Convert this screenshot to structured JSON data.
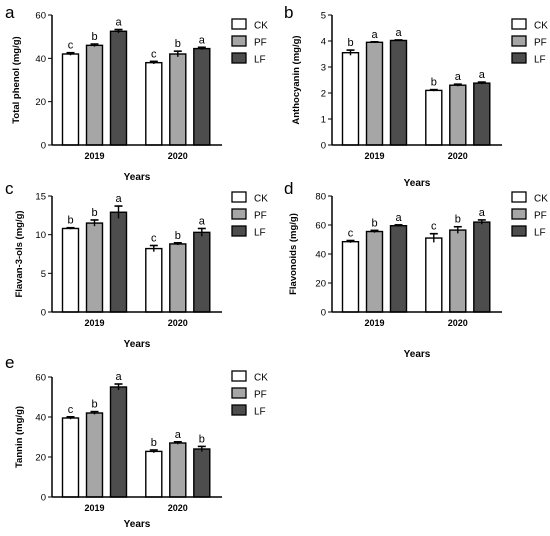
{
  "chart_data": [
    {
      "type": "bar",
      "panel_label": "a",
      "categories": [
        "2019",
        "2020"
      ],
      "xlabel": "Years",
      "ylabel": "Total phenol (mg/g)",
      "ylim": [
        0,
        60
      ],
      "yticks": [
        "0",
        "20",
        "40",
        "60"
      ],
      "series": [
        {
          "name": "CK",
          "values": [
            42.0,
            38.0
          ],
          "errors": [
            0.6,
            0.6
          ],
          "letters": [
            "c",
            "c"
          ]
        },
        {
          "name": "PF",
          "values": [
            46.0,
            42.0
          ],
          "errors": [
            0.6,
            1.3
          ],
          "letters": [
            "b",
            "b"
          ]
        },
        {
          "name": "LF",
          "values": [
            52.5,
            44.5
          ],
          "errors": [
            0.8,
            0.6
          ],
          "letters": [
            "a",
            "a"
          ]
        }
      ],
      "legend": "right"
    },
    {
      "type": "bar",
      "panel_label": "b",
      "categories": [
        "2019",
        "2020"
      ],
      "xlabel": "Years",
      "ylabel": "Anthocyanin (mg/g)",
      "ylim": [
        0,
        5
      ],
      "yticks": [
        "0",
        "1",
        "2",
        "3",
        "4",
        "5"
      ],
      "series": [
        {
          "name": "CK",
          "values": [
            3.55,
            2.1
          ],
          "errors": [
            0.1,
            0.03
          ],
          "letters": [
            "b",
            "b"
          ]
        },
        {
          "name": "PF",
          "values": [
            3.95,
            2.3
          ],
          "errors": [
            0.02,
            0.04
          ],
          "letters": [
            "a",
            "a"
          ]
        },
        {
          "name": "LF",
          "values": [
            4.02,
            2.38
          ],
          "errors": [
            0.02,
            0.04
          ],
          "letters": [
            "a",
            "a"
          ]
        }
      ],
      "legend": "right"
    },
    {
      "type": "bar",
      "panel_label": "c",
      "categories": [
        "2019",
        "2020"
      ],
      "xlabel": "Years",
      "ylabel": "Flavan-3-ols (mg/g)",
      "ylim": [
        0,
        15
      ],
      "yticks": [
        "0",
        "5",
        "10",
        "15"
      ],
      "series": [
        {
          "name": "CK",
          "values": [
            10.8,
            8.2
          ],
          "errors": [
            0.1,
            0.4
          ],
          "letters": [
            "b",
            "c"
          ]
        },
        {
          "name": "PF",
          "values": [
            11.5,
            8.8
          ],
          "errors": [
            0.4,
            0.15
          ],
          "letters": [
            "b",
            "b"
          ]
        },
        {
          "name": "LF",
          "values": [
            12.9,
            10.3
          ],
          "errors": [
            0.8,
            0.5
          ],
          "letters": [
            "a",
            "a"
          ]
        }
      ],
      "legend": "right"
    },
    {
      "type": "bar",
      "panel_label": "d",
      "categories": [
        "2019",
        "2020"
      ],
      "xlabel": "Years",
      "ylabel": "Flavonoids (mg/g)",
      "ylim": [
        0,
        80
      ],
      "yticks": [
        "0",
        "20",
        "40",
        "60",
        "80"
      ],
      "series": [
        {
          "name": "CK",
          "values": [
            48.5,
            51.0
          ],
          "errors": [
            0.8,
            3.0
          ],
          "letters": [
            "c",
            "c"
          ]
        },
        {
          "name": "PF",
          "values": [
            55.5,
            56.5
          ],
          "errors": [
            0.8,
            2.3
          ],
          "letters": [
            "b",
            "b"
          ]
        },
        {
          "name": "LF",
          "values": [
            59.5,
            62.0
          ],
          "errors": [
            0.6,
            1.5
          ],
          "letters": [
            "a",
            "a"
          ]
        }
      ],
      "legend": "right"
    },
    {
      "type": "bar",
      "panel_label": "e",
      "categories": [
        "2019",
        "2020"
      ],
      "xlabel": "Years",
      "ylabel": "Tannin (mg/g)",
      "ylim": [
        0,
        60
      ],
      "yticks": [
        "0",
        "20",
        "40",
        "60"
      ],
      "series": [
        {
          "name": "CK",
          "values": [
            39.5,
            22.8
          ],
          "errors": [
            0.6,
            0.7
          ],
          "letters": [
            "c",
            "b"
          ]
        },
        {
          "name": "PF",
          "values": [
            42.0,
            27.0
          ],
          "errors": [
            0.7,
            0.6
          ],
          "letters": [
            "b",
            "a"
          ]
        },
        {
          "name": "LF",
          "values": [
            55.0,
            24.0
          ],
          "errors": [
            1.5,
            1.3
          ],
          "letters": [
            "a",
            "b"
          ]
        }
      ],
      "legend": "right"
    }
  ],
  "colors": {
    "CK": "#ffffff",
    "PF": "#a6a6a6",
    "LF": "#4d4d4d",
    "axis": "#000000"
  }
}
